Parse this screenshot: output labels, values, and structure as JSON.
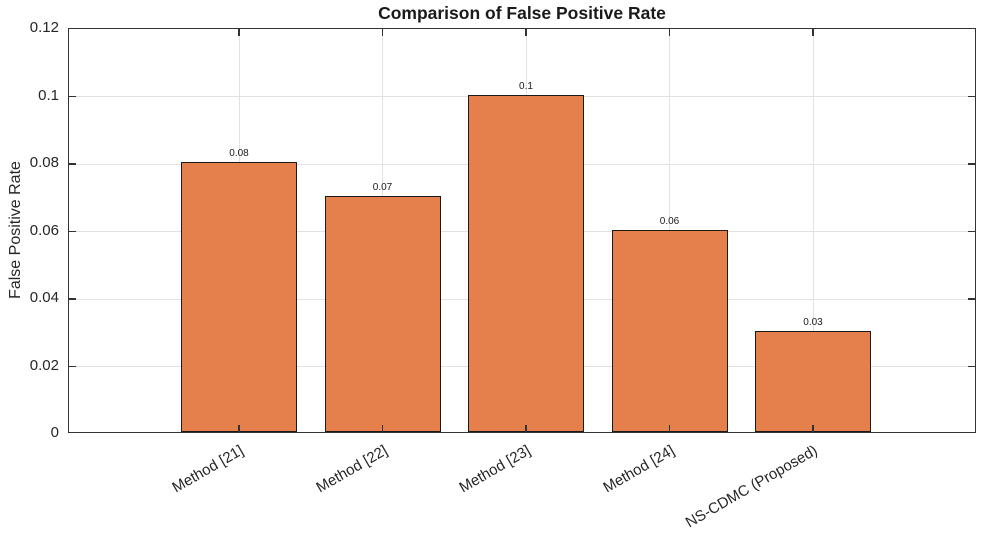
{
  "chart_data": {
    "type": "bar",
    "title": "Comparison of False Positive Rate",
    "xlabel": "",
    "ylabel": "False Positive Rate",
    "categories": [
      "Method [21]",
      "Method [22]",
      "Method [23]",
      "Method [24]",
      "NS-CDMC (Proposed)"
    ],
    "values": [
      0.08,
      0.07,
      0.1,
      0.06,
      0.03
    ],
    "bar_value_labels": [
      "0.08",
      "0.07",
      "0.1",
      "0.06",
      "0.03"
    ],
    "ylim": [
      0,
      0.12
    ],
    "yticks": [
      0,
      0.02,
      0.04,
      0.06,
      0.08,
      0.1,
      0.12
    ],
    "ytick_labels": [
      "0",
      "0.02",
      "0.04",
      "0.06",
      "0.08",
      "0.1",
      "0.12"
    ],
    "grid": true,
    "legend_position": "none",
    "xtick_rotation_deg": 30,
    "colors": {
      "bar_fill": "#E5804D",
      "bar_edge": "#1a1a1a",
      "grid": "#e2e2e2",
      "axis": "#333333",
      "text": "#262626"
    }
  }
}
